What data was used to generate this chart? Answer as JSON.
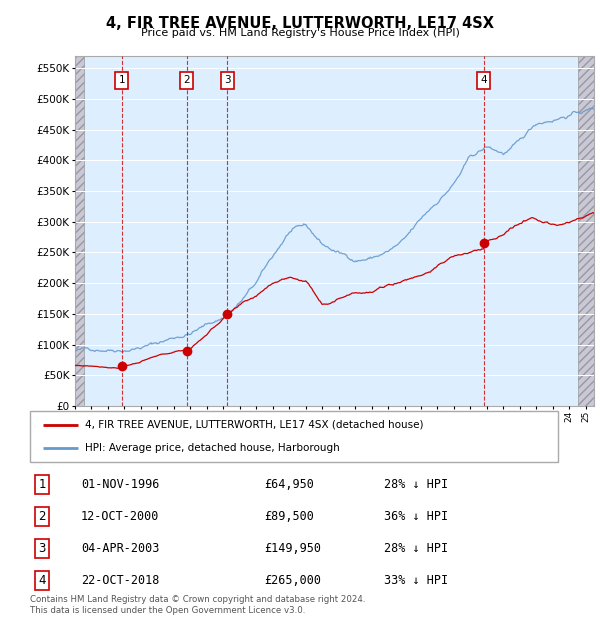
{
  "title": "4, FIR TREE AVENUE, LUTTERWORTH, LE17 4SX",
  "subtitle": "Price paid vs. HM Land Registry's House Price Index (HPI)",
  "ylim": [
    0,
    570000
  ],
  "yticks": [
    0,
    50000,
    100000,
    150000,
    200000,
    250000,
    300000,
    350000,
    400000,
    450000,
    500000,
    550000
  ],
  "transactions": [
    {
      "label": "1",
      "date": "01-NOV-1996",
      "year": 1996.83,
      "price": 64950,
      "pct": "28% ↓ HPI"
    },
    {
      "label": "2",
      "date": "12-OCT-2000",
      "year": 2000.78,
      "price": 89500,
      "pct": "36% ↓ HPI"
    },
    {
      "label": "3",
      "date": "04-APR-2003",
      "year": 2003.25,
      "price": 149950,
      "pct": "28% ↓ HPI"
    },
    {
      "label": "4",
      "date": "22-OCT-2018",
      "year": 2018.81,
      "price": 265000,
      "pct": "33% ↓ HPI"
    }
  ],
  "legend_property": "4, FIR TREE AVENUE, LUTTERWORTH, LE17 4SX (detached house)",
  "legend_hpi": "HPI: Average price, detached house, Harborough",
  "footnote": "Contains HM Land Registry data © Crown copyright and database right 2024.\nThis data is licensed under the Open Government Licence v3.0.",
  "property_color": "#cc0000",
  "hpi_color": "#6699cc",
  "background_plot": "#ddeeff",
  "xmin": 1994,
  "xmax": 2025.5,
  "hatch_xmin": 1994,
  "hatch_xmax1": 1994.6,
  "hatch_xmin2": 2024.5,
  "hatch_xmax": 2025.5
}
